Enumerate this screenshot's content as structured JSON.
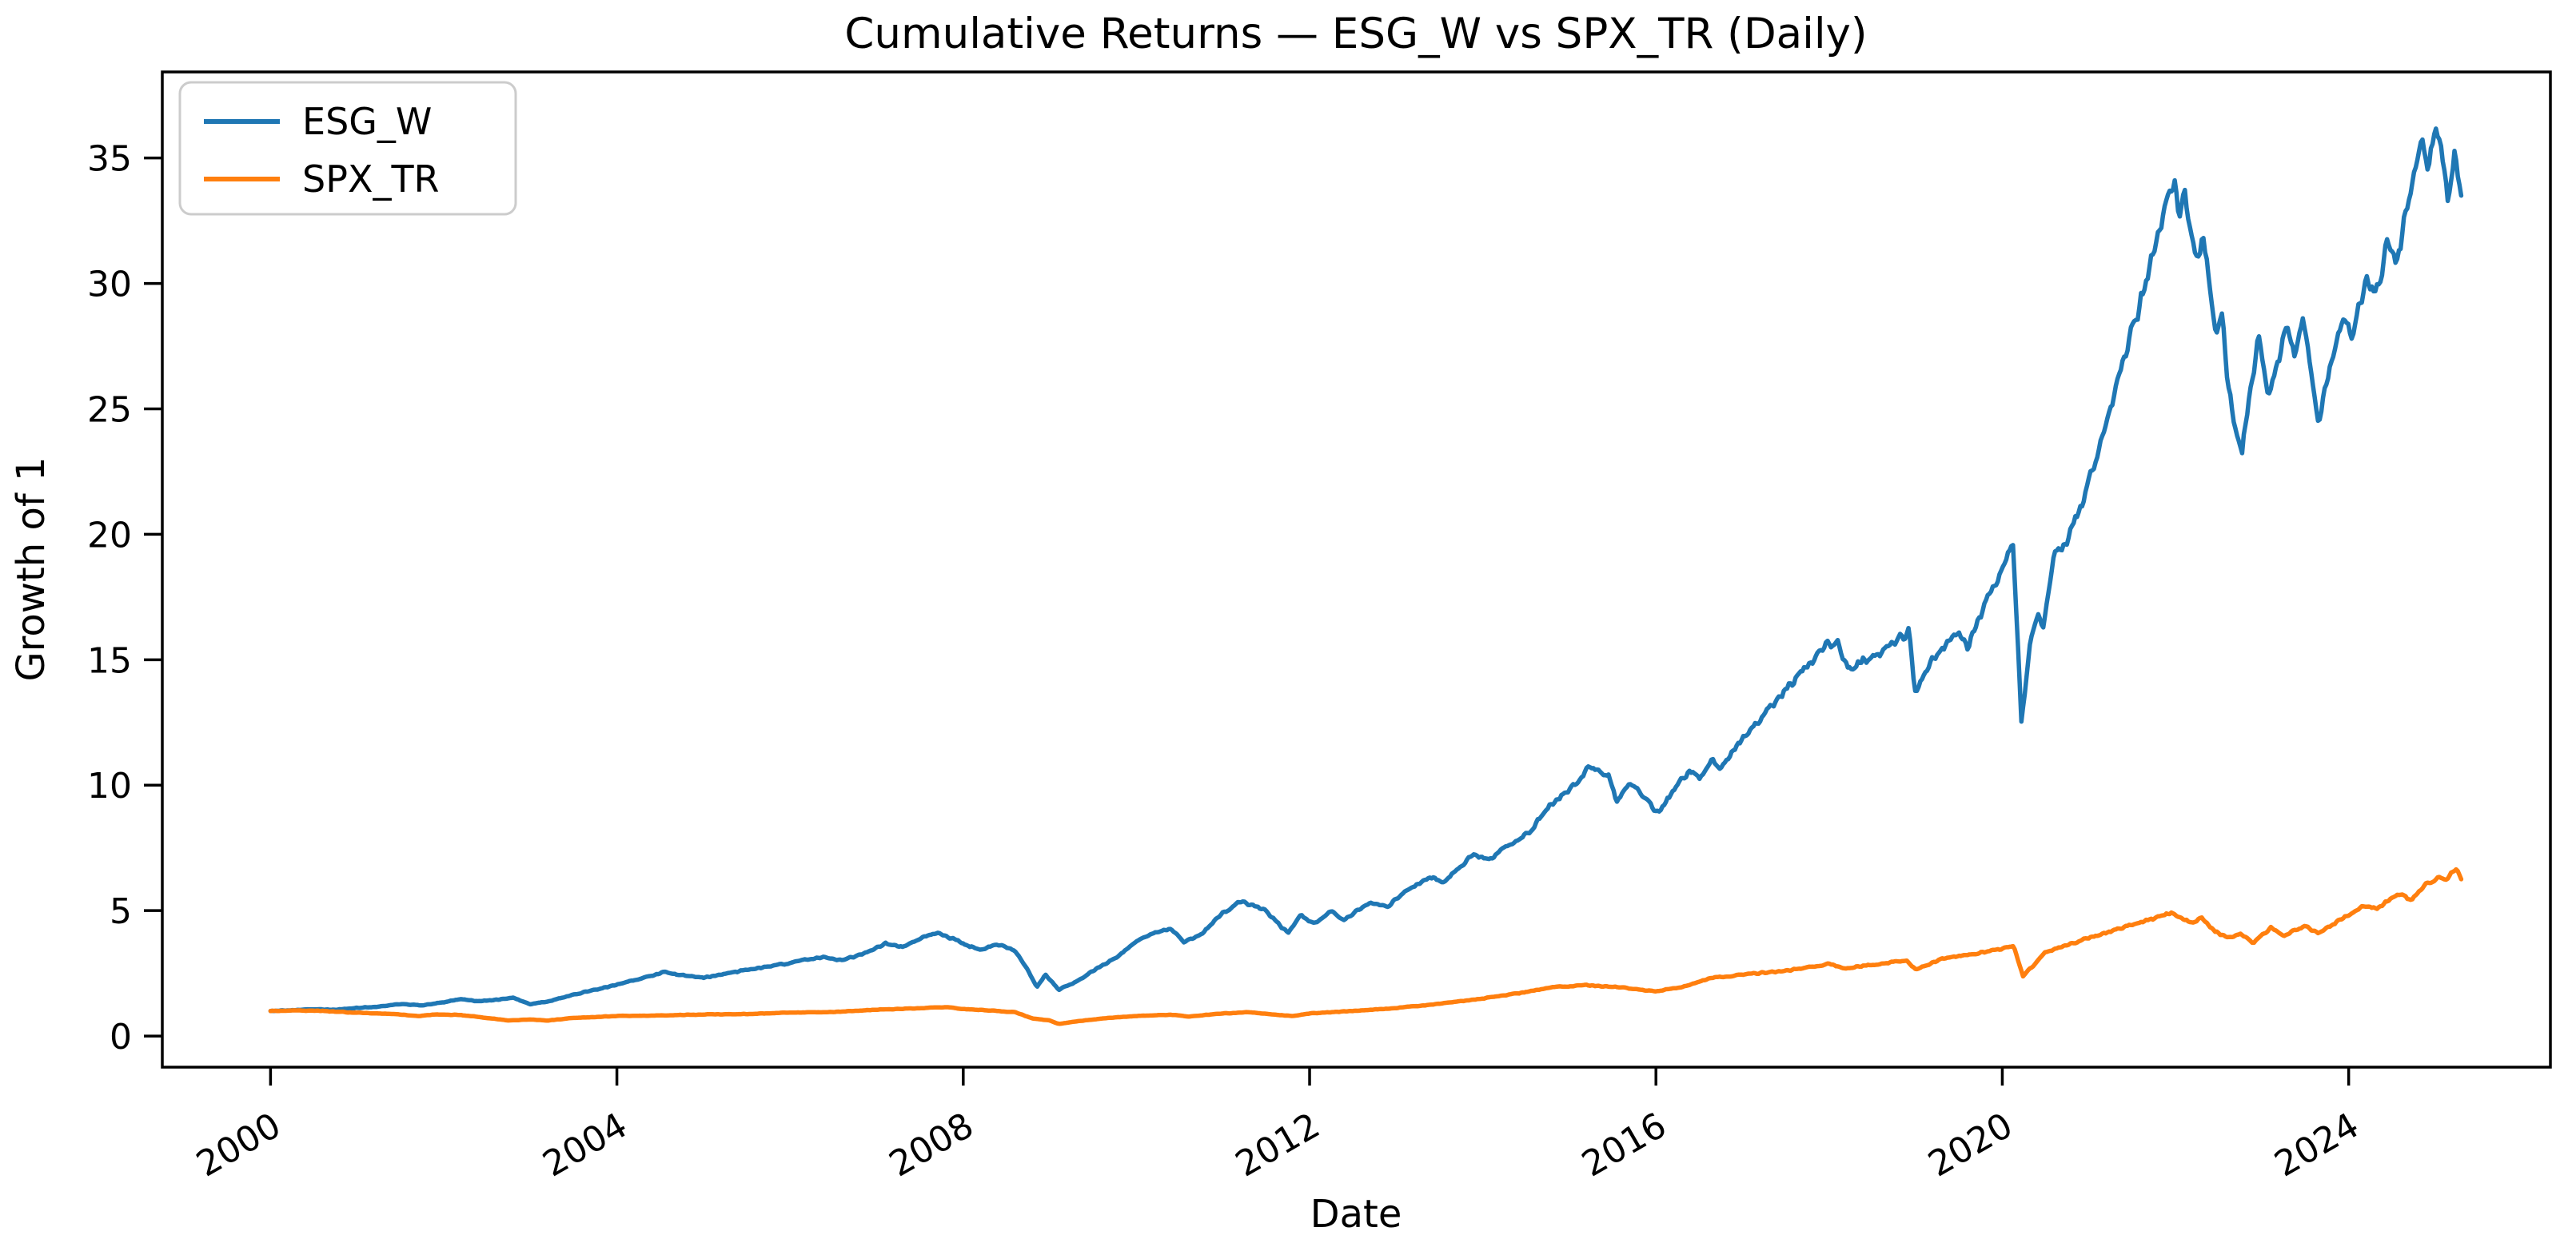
{
  "chart_data": {
    "type": "line",
    "title": "Cumulative Returns — ESG_W vs SPX_TR (Daily)",
    "xlabel": "Date",
    "ylabel": "Growth of 1",
    "grid": false,
    "legend_position": "upper left",
    "xlim": [
      1998.75,
      2026.33
    ],
    "ylim": [
      -1.24,
      38.43
    ],
    "x_ticks": [
      2000,
      2004,
      2008,
      2012,
      2016,
      2020,
      2024
    ],
    "y_ticks": [
      0,
      5,
      10,
      15,
      20,
      25,
      30,
      35
    ],
    "axis_color": "#000000",
    "background_color": "#ffffff",
    "legend_edge_color": "#cccccc",
    "series": [
      {
        "name": "ESG_W",
        "color": "#1f77b4",
        "x": [
          2000.0,
          2000.25,
          2000.5,
          2000.75,
          2001.0,
          2001.25,
          2001.5,
          2001.75,
          2002.0,
          2002.2,
          2002.4,
          2002.6,
          2002.8,
          2003.0,
          2003.2,
          2003.5,
          2003.75,
          2004.0,
          2004.3,
          2004.55,
          2004.75,
          2005.0,
          2005.3,
          2005.6,
          2005.9,
          2006.2,
          2006.4,
          2006.6,
          2006.9,
          2007.1,
          2007.3,
          2007.55,
          2007.7,
          2007.9,
          2008.05,
          2008.2,
          2008.4,
          2008.6,
          2008.75,
          2008.85,
          2008.95,
          2009.1,
          2009.3,
          2009.5,
          2009.75,
          2010.0,
          2010.2,
          2010.4,
          2010.55,
          2010.75,
          2011.0,
          2011.2,
          2011.45,
          2011.6,
          2011.75,
          2011.9,
          2012.05,
          2012.25,
          2012.4,
          2012.7,
          2012.9,
          2013.0,
          2013.2,
          2013.4,
          2013.55,
          2013.7,
          2013.9,
          2014.1,
          2014.3,
          2014.5,
          2014.65,
          2014.8,
          2015.0,
          2015.25,
          2015.45,
          2015.55,
          2015.7,
          2015.85,
          2016.0,
          2016.1,
          2016.25,
          2016.4,
          2016.5,
          2016.65,
          2016.75,
          2016.9,
          2017.1,
          2017.3,
          2017.5,
          2017.65,
          2017.8,
          2017.97,
          2018.1,
          2018.22,
          2018.35,
          2018.5,
          2018.65,
          2018.8,
          2018.92,
          2019.0,
          2019.15,
          2019.3,
          2019.5,
          2019.6,
          2019.8,
          2019.95,
          2020.05,
          2020.12,
          2020.17,
          2020.22,
          2020.32,
          2020.42,
          2020.47,
          2020.6,
          2020.7,
          2020.8,
          2020.9,
          2021.0,
          2021.15,
          2021.3,
          2021.45,
          2021.6,
          2021.7,
          2021.8,
          2021.9,
          2022.0,
          2022.05,
          2022.1,
          2022.17,
          2022.25,
          2022.32,
          2022.4,
          2022.47,
          2022.53,
          2022.62,
          2022.7,
          2022.77,
          2022.87,
          2022.97,
          2023.07,
          2023.17,
          2023.27,
          2023.37,
          2023.47,
          2023.57,
          2023.65,
          2023.8,
          2023.95,
          2024.05,
          2024.2,
          2024.3,
          2024.45,
          2024.55,
          2024.7,
          2024.85,
          2024.92,
          2025.0,
          2025.08,
          2025.15,
          2025.22,
          2025.3
        ],
        "y": [
          1.0,
          1.03,
          1.07,
          1.05,
          1.12,
          1.18,
          1.28,
          1.22,
          1.35,
          1.48,
          1.38,
          1.45,
          1.52,
          1.27,
          1.38,
          1.65,
          1.85,
          2.05,
          2.3,
          2.55,
          2.42,
          2.32,
          2.52,
          2.7,
          2.85,
          3.05,
          3.15,
          3.0,
          3.35,
          3.7,
          3.55,
          3.95,
          4.1,
          3.85,
          3.6,
          3.45,
          3.65,
          3.4,
          2.6,
          1.95,
          2.45,
          1.85,
          2.15,
          2.6,
          3.1,
          3.75,
          4.1,
          4.3,
          3.75,
          4.05,
          4.9,
          5.35,
          5.1,
          4.6,
          4.1,
          4.8,
          4.5,
          5.0,
          4.62,
          5.35,
          5.12,
          5.5,
          5.95,
          6.35,
          6.15,
          6.65,
          7.25,
          7.05,
          7.65,
          8.0,
          8.6,
          9.3,
          9.8,
          10.75,
          10.4,
          9.35,
          10.05,
          9.6,
          8.9,
          9.25,
          10.05,
          10.65,
          10.3,
          11.05,
          10.7,
          11.45,
          12.2,
          13.0,
          13.8,
          14.45,
          14.85,
          15.55,
          15.75,
          14.6,
          14.9,
          15.1,
          15.4,
          15.9,
          16.1,
          13.6,
          14.8,
          15.5,
          16.1,
          15.5,
          17.2,
          18.3,
          19.1,
          19.8,
          16.5,
          12.4,
          15.8,
          16.8,
          16.1,
          19.1,
          19.4,
          20.3,
          21.0,
          22.2,
          23.8,
          25.6,
          27.5,
          29.3,
          30.5,
          32.0,
          33.3,
          33.9,
          32.6,
          33.6,
          32.0,
          30.8,
          31.9,
          30.0,
          27.7,
          28.9,
          25.6,
          24.2,
          23.4,
          26.0,
          27.9,
          25.4,
          26.6,
          28.3,
          27.1,
          28.6,
          26.6,
          24.4,
          26.9,
          28.9,
          27.8,
          30.3,
          29.4,
          31.5,
          30.8,
          33.5,
          35.9,
          34.4,
          36.3,
          35.2,
          33.3,
          35.2,
          33.5
        ]
      },
      {
        "name": "SPX_TR",
        "color": "#ff7f0e",
        "x": [
          2000.0,
          2000.3,
          2000.6,
          2001.0,
          2001.4,
          2001.7,
          2001.9,
          2002.2,
          2002.5,
          2002.75,
          2003.0,
          2003.2,
          2003.5,
          2004.0,
          2004.5,
          2005.0,
          2005.5,
          2006.0,
          2006.5,
          2007.0,
          2007.4,
          2007.8,
          2008.0,
          2008.3,
          2008.6,
          2008.8,
          2009.0,
          2009.1,
          2009.3,
          2009.6,
          2010.0,
          2010.4,
          2010.6,
          2011.0,
          2011.3,
          2011.6,
          2011.8,
          2012.0,
          2012.5,
          2013.0,
          2013.5,
          2014.0,
          2014.4,
          2014.8,
          2015.2,
          2015.6,
          2015.8,
          2016.0,
          2016.3,
          2016.65,
          2017.0,
          2017.5,
          2018.0,
          2018.2,
          2018.5,
          2018.9,
          2019.0,
          2019.35,
          2019.7,
          2020.0,
          2020.13,
          2020.24,
          2020.4,
          2020.5,
          2020.75,
          2021.0,
          2021.3,
          2021.6,
          2021.95,
          2022.1,
          2022.2,
          2022.3,
          2022.45,
          2022.6,
          2022.75,
          2022.9,
          2023.1,
          2023.25,
          2023.5,
          2023.65,
          2023.9,
          2024.0,
          2024.2,
          2024.32,
          2024.5,
          2024.62,
          2024.72,
          2024.9,
          2025.05,
          2025.12,
          2025.2,
          2025.25,
          2025.3
        ],
        "y": [
          1.0,
          1.02,
          1.0,
          0.93,
          0.88,
          0.8,
          0.86,
          0.84,
          0.72,
          0.62,
          0.66,
          0.62,
          0.72,
          0.8,
          0.82,
          0.86,
          0.88,
          0.93,
          0.96,
          1.05,
          1.1,
          1.15,
          1.08,
          1.02,
          0.95,
          0.7,
          0.62,
          0.48,
          0.58,
          0.7,
          0.8,
          0.85,
          0.78,
          0.9,
          0.95,
          0.85,
          0.8,
          0.9,
          1.0,
          1.12,
          1.28,
          1.5,
          1.7,
          1.95,
          2.02,
          1.95,
          1.85,
          1.78,
          1.95,
          2.32,
          2.45,
          2.6,
          2.88,
          2.7,
          2.85,
          3.02,
          2.65,
          3.12,
          3.28,
          3.48,
          3.58,
          2.4,
          2.95,
          3.35,
          3.62,
          3.92,
          4.22,
          4.55,
          4.9,
          4.65,
          4.48,
          4.72,
          4.2,
          3.9,
          4.1,
          3.73,
          4.31,
          4.0,
          4.4,
          4.07,
          4.65,
          4.81,
          5.22,
          5.05,
          5.5,
          5.64,
          5.42,
          6.05,
          6.31,
          6.15,
          6.59,
          6.67,
          6.25
        ]
      }
    ]
  }
}
